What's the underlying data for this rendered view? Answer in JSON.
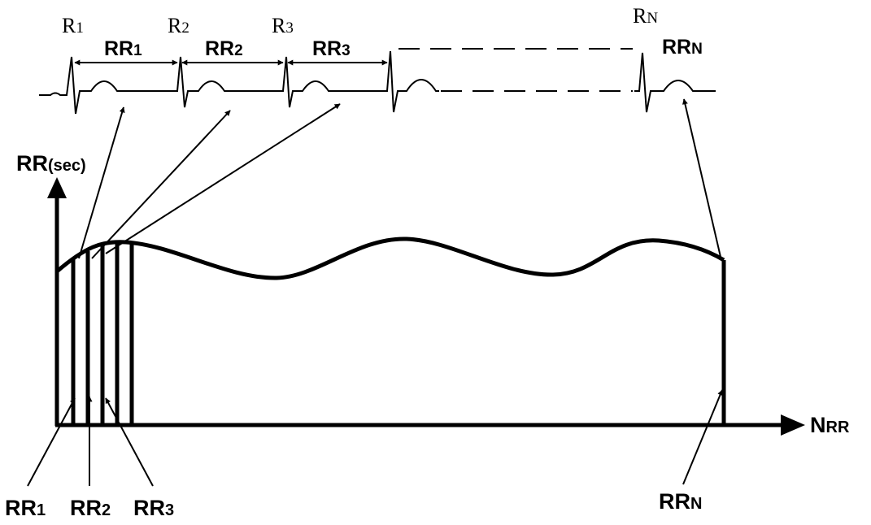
{
  "ecg": {
    "r_labels": [
      {
        "main": "R",
        "sub": "1"
      },
      {
        "main": "R",
        "sub": "2"
      },
      {
        "main": "R",
        "sub": "3"
      },
      {
        "main": "R",
        "sub": "N"
      }
    ],
    "interval_labels": [
      {
        "main": "RR",
        "sub": "1"
      },
      {
        "main": "RR",
        "sub": "2"
      },
      {
        "main": "RR",
        "sub": "3"
      },
      {
        "main": "RR",
        "sub": "N"
      }
    ]
  },
  "tachogram": {
    "y_axis_label": {
      "main": "RR",
      "sub": "(sec)"
    },
    "x_axis_label": {
      "main": "N",
      "sub": "RR"
    },
    "bar_labels": [
      {
        "main": "RR",
        "sub": "1"
      },
      {
        "main": "RR",
        "sub": "2"
      },
      {
        "main": "RR",
        "sub": "3"
      },
      {
        "main": "RR",
        "sub": "N"
      }
    ]
  },
  "colors": {
    "ink": "#000000",
    "background": "#ffffff"
  }
}
